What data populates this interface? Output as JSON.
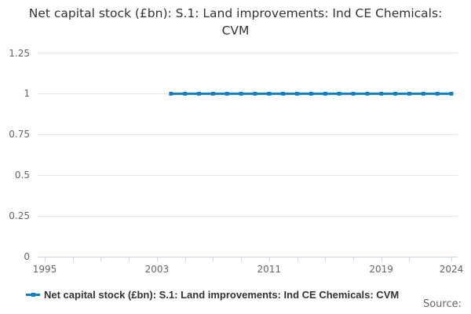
{
  "title": "Net capital stock (£bn): S.1: Land improvements: Ind CE Chemicals: CVM",
  "source_label": "Source:",
  "legend": {
    "label": "Net capital stock (£bn): S.1: Land improvements: Ind CE Chemicals: CVM"
  },
  "colors": {
    "series": "#137fc1",
    "grid": "#e6e6e6",
    "axis": "#ccd6eb",
    "axis_label": "#666666",
    "title_text": "#333333",
    "legend_text": "#333333",
    "source_text": "#666666",
    "background": "#ffffff"
  },
  "chart_data": {
    "type": "line",
    "title": "Net capital stock (£bn): S.1: Land improvements: Ind CE Chemicals: CVM",
    "xlabel": "",
    "ylabel": "",
    "x_range": [
      1995,
      2024
    ],
    "ylim": [
      0,
      1.25
    ],
    "grid": true,
    "legend_position": "bottom-left",
    "yticks": [
      {
        "value": 0,
        "label": "0"
      },
      {
        "value": 0.25,
        "label": "0.25"
      },
      {
        "value": 0.5,
        "label": "0.5"
      },
      {
        "value": 0.75,
        "label": "0.75"
      },
      {
        "value": 1,
        "label": "1"
      },
      {
        "value": 1.25,
        "label": "1.25"
      }
    ],
    "xticks": {
      "tick_years": [
        1995,
        1997,
        1999,
        2001,
        2003,
        2005,
        2007,
        2009,
        2011,
        2013,
        2015,
        2017,
        2019,
        2021,
        2024
      ],
      "labeled_years": [
        1995,
        2003,
        2011,
        2019,
        2024
      ]
    },
    "series": [
      {
        "name": "Net capital stock (£bn): S.1: Land improvements: Ind CE Chemicals: CVM",
        "x": [
          2004,
          2005,
          2006,
          2007,
          2008,
          2009,
          2010,
          2011,
          2012,
          2013,
          2014,
          2015,
          2016,
          2017,
          2018,
          2019,
          2020,
          2021,
          2022,
          2023,
          2024
        ],
        "values": [
          1,
          1,
          1,
          1,
          1,
          1,
          1,
          1,
          1,
          1,
          1,
          1,
          1,
          1,
          1,
          1,
          1,
          1,
          1,
          1,
          1
        ]
      }
    ]
  }
}
